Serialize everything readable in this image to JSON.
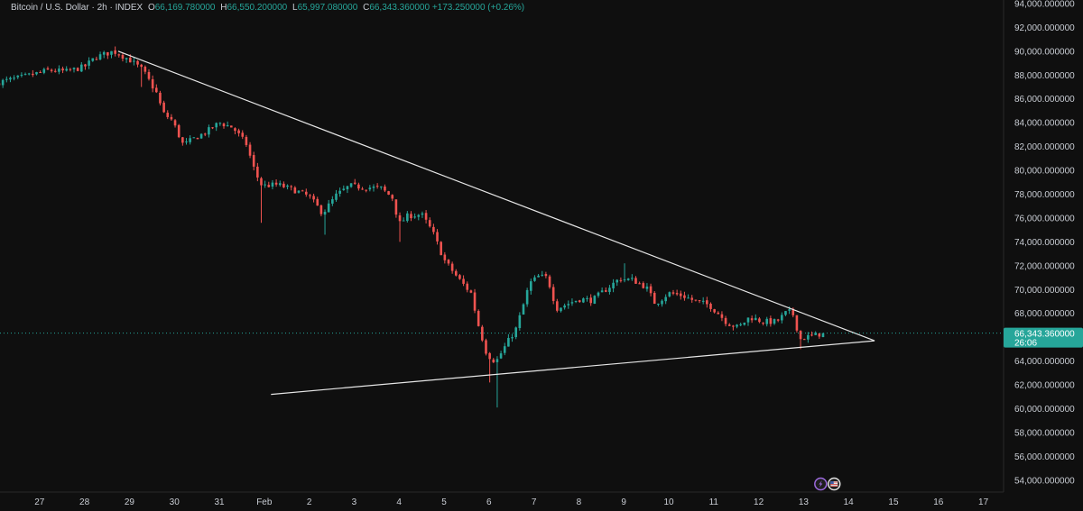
{
  "symbol": {
    "name": "Bitcoin / U.S. Dollar",
    "interval": "2h",
    "source": "INDEX",
    "o_label": "O",
    "o_value": "66,169.780000",
    "h_label": "H",
    "h_value": "66,550.200000",
    "l_label": "L",
    "l_value": "65,997.080000",
    "c_label": "C",
    "c_value": "66,343.360000",
    "change": "+173.250000 (+0.26%)"
  },
  "price_badge": {
    "value": "66,343.360000",
    "countdown": "26:06"
  },
  "colors": {
    "background": "#0f0f0f",
    "up": "#26a69a",
    "down": "#ef5350",
    "trendline": "#e6e6e6",
    "badge": "#26a69a",
    "axis_text": "#c9cdd4"
  },
  "chart_data": {
    "type": "candlestick",
    "title": "Bitcoin / U.S. Dollar · 2h · INDEX",
    "y_tick_labels": [
      "54,000.000000",
      "56,000.000000",
      "58,000.000000",
      "60,000.000000",
      "62,000.000000",
      "64,000.000000",
      "66,000.000000",
      "68,000.000000",
      "70,000.000000",
      "72,000.000000",
      "74,000.000000",
      "76,000.000000",
      "78,000.000000",
      "80,000.000000",
      "82,000.000000",
      "84,000.000000",
      "86,000.000000",
      "88,000.000000",
      "90,000.000000",
      "92,000.000000",
      "94,000.000000"
    ],
    "ylim": [
      53000,
      94300
    ],
    "x_tick_labels": [
      "27",
      "28",
      "29",
      "30",
      "31",
      "Feb",
      "2",
      "3",
      "4",
      "5",
      "6",
      "7",
      "8",
      "9",
      "10",
      "11",
      "12",
      "13",
      "14",
      "15",
      "16",
      "17"
    ],
    "x_tick_days": [
      -4,
      -3,
      -2,
      -1,
      0,
      1,
      2,
      3,
      4,
      5,
      6,
      7,
      8,
      9,
      10,
      11,
      12,
      13,
      14,
      15,
      16,
      17
    ],
    "xlim": [
      -4.88,
      17.45
    ],
    "grid": false,
    "last_price": 66343.36,
    "series": [
      {
        "type": "candles",
        "bars_per_day": 12,
        "close_path": [
          [
            -4.9,
            87400
          ],
          [
            -4.3,
            87900
          ],
          [
            -3.8,
            88400
          ],
          [
            -3.4,
            88300
          ],
          [
            -3.0,
            88700
          ],
          [
            -2.75,
            89500
          ],
          [
            -2.35,
            90000
          ],
          [
            -2.0,
            89300
          ],
          [
            -1.7,
            88400
          ],
          [
            -1.4,
            86500
          ],
          [
            -1.25,
            84800
          ],
          [
            -1.05,
            84200
          ],
          [
            -0.8,
            82100
          ],
          [
            -0.6,
            82600
          ],
          [
            -0.3,
            83200
          ],
          [
            0.0,
            84000
          ],
          [
            0.3,
            83600
          ],
          [
            0.6,
            82200
          ],
          [
            0.8,
            79800
          ],
          [
            0.95,
            78700
          ],
          [
            1.3,
            78800
          ],
          [
            1.7,
            78300
          ],
          [
            2.0,
            77800
          ],
          [
            2.3,
            76400
          ],
          [
            2.6,
            77900
          ],
          [
            2.9,
            78700
          ],
          [
            3.2,
            78600
          ],
          [
            3.6,
            78500
          ],
          [
            3.85,
            77700
          ],
          [
            4.0,
            75500
          ],
          [
            4.2,
            76200
          ],
          [
            4.5,
            76300
          ],
          [
            4.75,
            74800
          ],
          [
            5.0,
            72500
          ],
          [
            5.3,
            71000
          ],
          [
            5.6,
            69700
          ],
          [
            5.75,
            67200
          ],
          [
            5.95,
            64600
          ],
          [
            6.15,
            63900
          ],
          [
            6.4,
            65500
          ],
          [
            6.6,
            66700
          ],
          [
            6.75,
            68500
          ],
          [
            6.9,
            70500
          ],
          [
            7.1,
            71100
          ],
          [
            7.3,
            71000
          ],
          [
            7.5,
            68400
          ],
          [
            7.75,
            68800
          ],
          [
            8.0,
            69200
          ],
          [
            8.3,
            69100
          ],
          [
            8.6,
            70000
          ],
          [
            8.9,
            70900
          ],
          [
            9.2,
            70800
          ],
          [
            9.5,
            70200
          ],
          [
            9.7,
            68800
          ],
          [
            10.0,
            69700
          ],
          [
            10.3,
            69500
          ],
          [
            10.6,
            69000
          ],
          [
            10.9,
            68700
          ],
          [
            11.1,
            68000
          ],
          [
            11.3,
            67200
          ],
          [
            11.55,
            66800
          ],
          [
            11.8,
            67700
          ],
          [
            12.1,
            67300
          ],
          [
            12.4,
            67300
          ],
          [
            12.65,
            68200
          ],
          [
            12.8,
            67800
          ],
          [
            12.9,
            65800
          ],
          [
            13.05,
            66000
          ],
          [
            13.3,
            66200
          ],
          [
            13.42,
            66343.36
          ]
        ],
        "spikes": [
          {
            "day": -2.35,
            "high": 90400
          },
          {
            "day": -1.7,
            "low": 87000
          },
          {
            "day": 0.95,
            "low": 75600
          },
          {
            "day": 2.35,
            "low": 74600
          },
          {
            "day": 4.0,
            "low": 74000
          },
          {
            "day": 6.05,
            "low": 62200
          },
          {
            "day": 6.15,
            "low": 60100
          },
          {
            "day": 9.0,
            "high": 72200
          },
          {
            "day": 12.9,
            "low": 65000
          }
        ]
      },
      {
        "type": "trendline",
        "name": "",
        "from": {
          "day": -2.25,
          "price": 90000
        },
        "to": {
          "day": 14.58,
          "price": 65700
        }
      },
      {
        "type": "trendline",
        "name": "",
        "from": {
          "day": 1.15,
          "price": 61200
        },
        "to": {
          "day": 14.58,
          "price": 65700
        }
      },
      {
        "type": "hline",
        "name": "",
        "price": 66343.36
      }
    ]
  },
  "event_markers": [
    {
      "icon": "lightning-icon",
      "color": "#9c6ade",
      "day": 13.38
    },
    {
      "icon": "us-flag-icon",
      "color": "#e0e0e0",
      "day": 13.68
    }
  ]
}
